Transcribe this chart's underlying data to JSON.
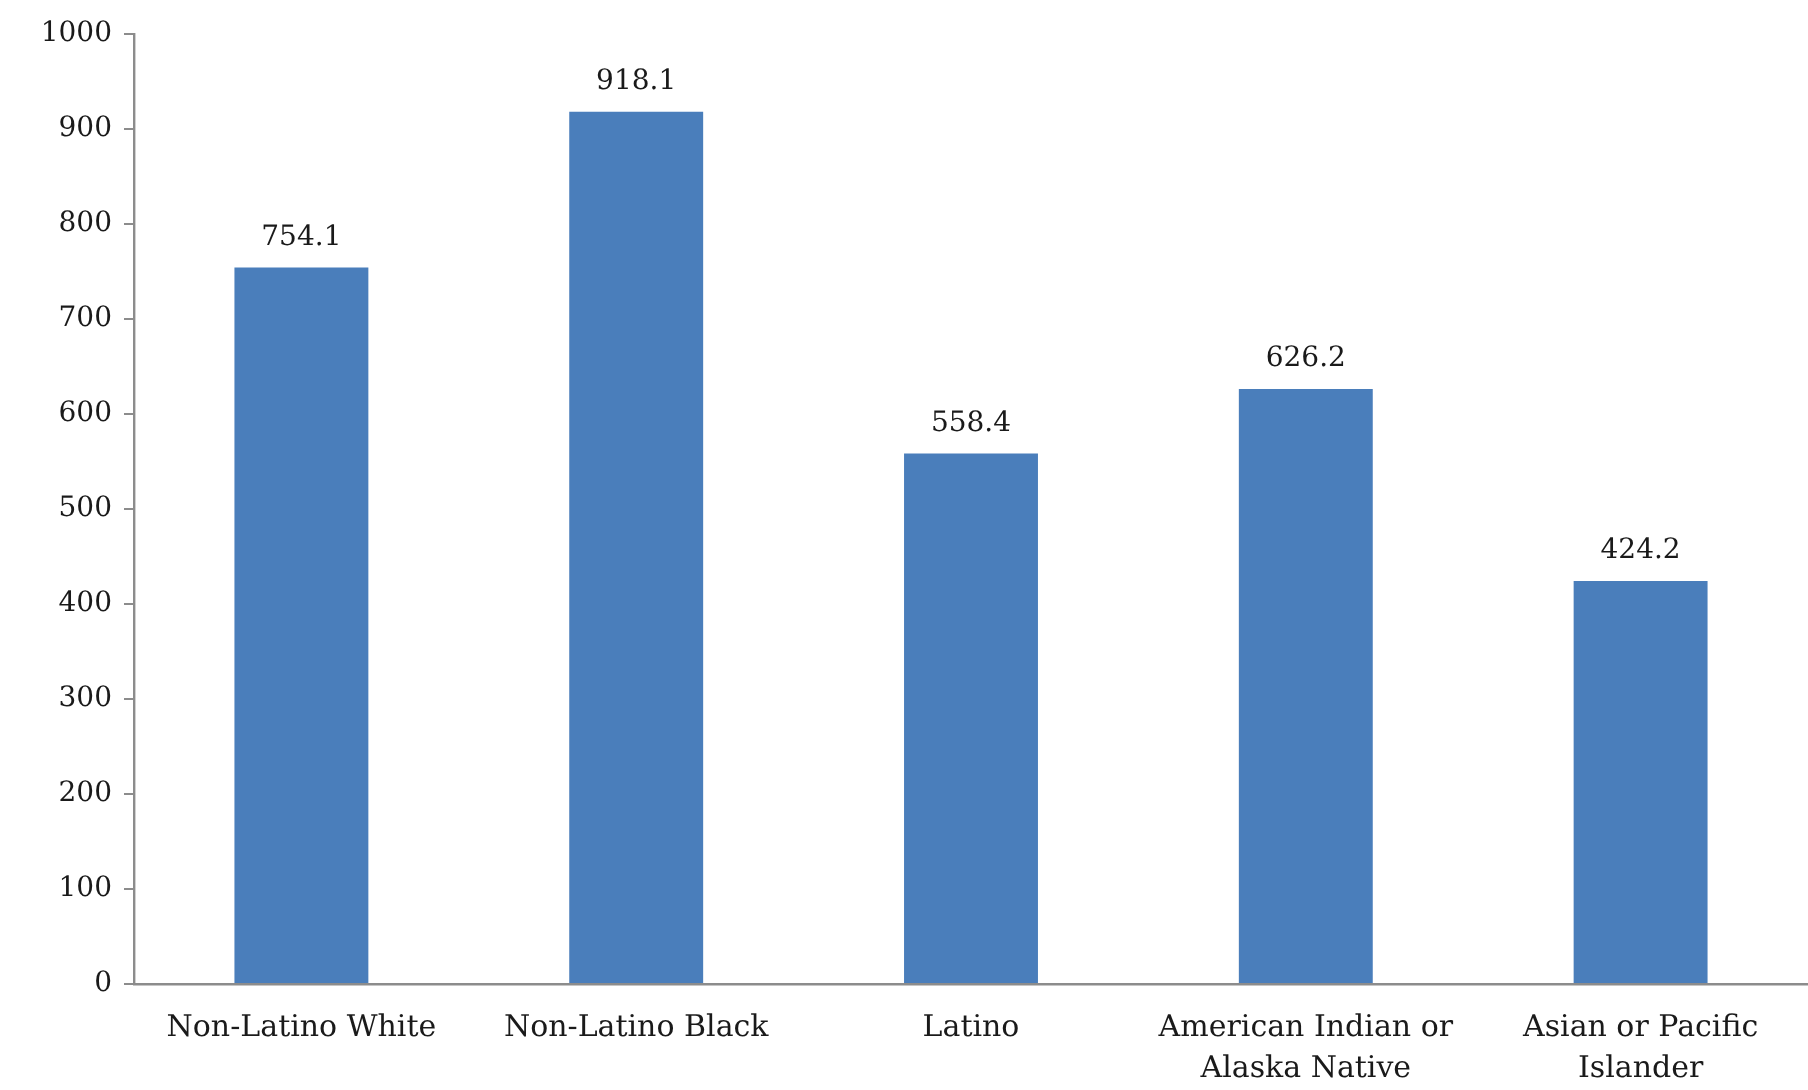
{
  "chart_data": {
    "type": "bar",
    "categories": [
      "Non-Latino White",
      "Non-Latino Black",
      "Latino",
      "American Indian or Alaska Native",
      "Asian or Pacific Islander"
    ],
    "values": [
      754.1,
      918.1,
      558.4,
      626.2,
      424.2
    ],
    "color": "#4a7ebb",
    "ylim": [
      0,
      1000
    ],
    "yticks": [
      0,
      100,
      200,
      300,
      400,
      500,
      600,
      700,
      800,
      900,
      1000
    ],
    "grid": false,
    "data_labels": true
  }
}
